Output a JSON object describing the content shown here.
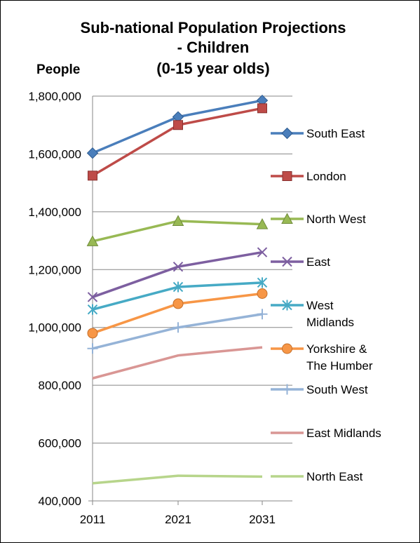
{
  "chart_data": {
    "type": "line",
    "title": [
      "Sub-national Population Projections",
      "- Children",
      "(0-15 year olds)"
    ],
    "ylabel": "People",
    "xlabel": "",
    "x": [
      "2011",
      "2021",
      "2031"
    ],
    "ylim": [
      400000,
      1800000
    ],
    "yticks": [
      "400,000",
      "600,000",
      "800,000",
      "1,000,000",
      "1,200,000",
      "1,400,000",
      "1,600,000",
      "1,800,000"
    ],
    "grid": true,
    "legend_position": "right",
    "series": [
      {
        "name": "South East",
        "values": [
          1603000,
          1728000,
          1785000
        ],
        "color": "#4a7ebb",
        "marker": "diamond"
      },
      {
        "name": "London",
        "values": [
          1525000,
          1700000,
          1758000
        ],
        "color": "#be4b48",
        "marker": "square"
      },
      {
        "name": "North West",
        "values": [
          1298000,
          1368000,
          1357000
        ],
        "color": "#98b954",
        "marker": "triangle"
      },
      {
        "name": "East",
        "values": [
          1105000,
          1210000,
          1260000
        ],
        "color": "#7d5fa0",
        "marker": "x"
      },
      {
        "name": "West Midlands",
        "label_lines": [
          "West",
          "Midlands"
        ],
        "values": [
          1062000,
          1140000,
          1155000
        ],
        "color": "#46aac5",
        "marker": "star"
      },
      {
        "name": "Yorkshire & The Humber",
        "label_lines": [
          "Yorkshire &",
          "The Humber"
        ],
        "values": [
          980000,
          1082000,
          1117000
        ],
        "color": "#f79646",
        "marker": "circle"
      },
      {
        "name": "South West",
        "values": [
          927000,
          1000000,
          1046000
        ],
        "color": "#95b3d7",
        "marker": "plus"
      },
      {
        "name": "East Midlands",
        "values": [
          824000,
          903000,
          931000
        ],
        "color": "#d99694",
        "marker": "none"
      },
      {
        "name": "North East",
        "values": [
          461000,
          487000,
          484000
        ],
        "color": "#b7d58b",
        "marker": "none"
      }
    ]
  }
}
